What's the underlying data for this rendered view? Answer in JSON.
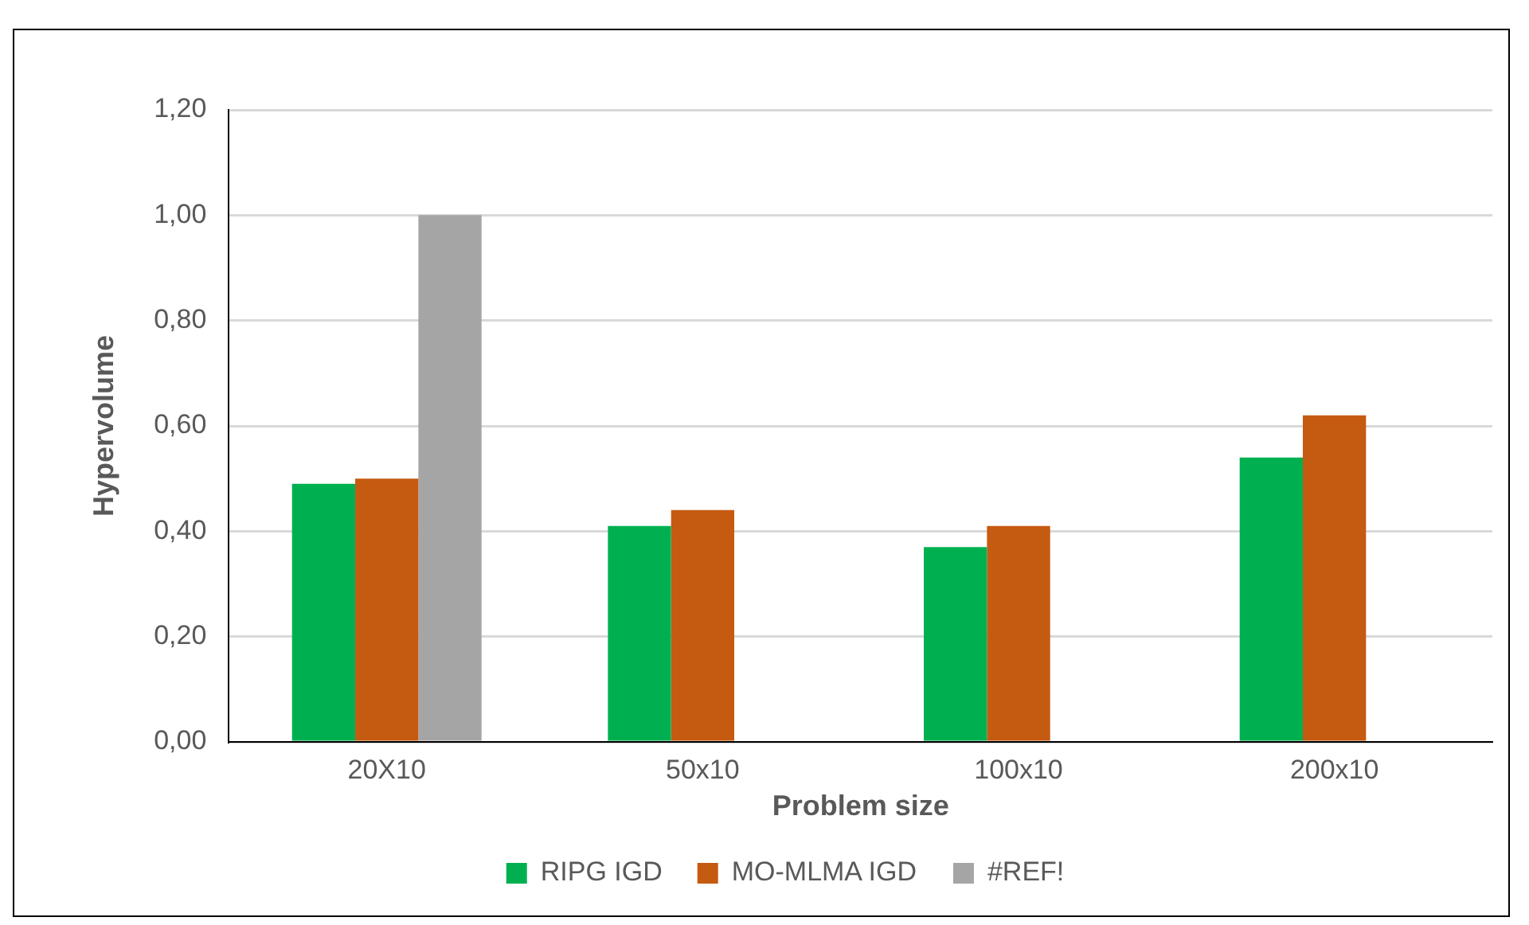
{
  "chart_data": {
    "type": "bar",
    "xlabel": "Problem size",
    "ylabel": "Hypervolume",
    "categories": [
      "20X10",
      "50x10",
      "100x10",
      "200x10"
    ],
    "series": [
      {
        "name": "RIPG IGD",
        "color": "#00b050",
        "values": [
          0.49,
          0.41,
          0.37,
          0.54
        ]
      },
      {
        "name": "MO-MLMA IGD",
        "color": "#c55a11",
        "values": [
          0.5,
          0.44,
          0.41,
          0.62
        ]
      },
      {
        "name": "#REF!",
        "color": "#a5a5a5",
        "values": [
          1.0,
          null,
          null,
          null
        ]
      }
    ],
    "ylim": [
      0,
      1.2
    ],
    "yticks": [
      {
        "value": 0,
        "label": "0,00"
      },
      {
        "value": 0.2,
        "label": "0,20"
      },
      {
        "value": 0.4,
        "label": "0,40"
      },
      {
        "value": 0.6,
        "label": "0,60"
      },
      {
        "value": 0.8,
        "label": "0,80"
      },
      {
        "value": 1.0,
        "label": "1,00"
      },
      {
        "value": 1.2,
        "label": "1,20"
      }
    ],
    "grid": "y",
    "legend": "bottom"
  }
}
